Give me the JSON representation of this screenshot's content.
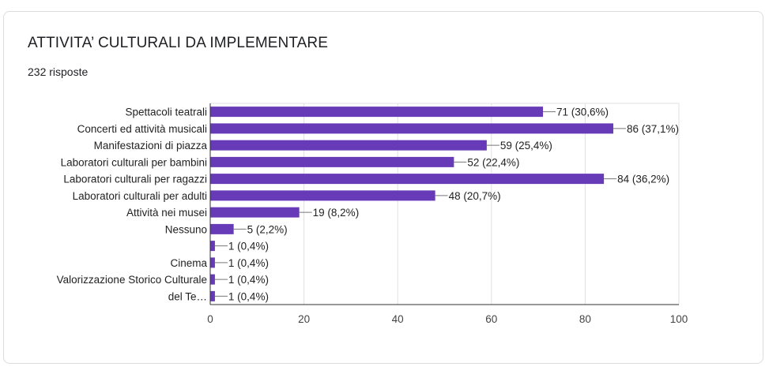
{
  "title": "ATTIVITA’ CULTURALI DA IMPLEMENTARE",
  "subtitle": "232 risposte",
  "chart_data": {
    "type": "bar",
    "orientation": "horizontal",
    "bar_color": "#673ab7",
    "xlim": [
      0,
      100
    ],
    "xticks": [
      0,
      20,
      40,
      60,
      80,
      100
    ],
    "grid": true,
    "bars": [
      {
        "category": [
          "Spettacoli teatrali"
        ],
        "value": 71,
        "label": "71 (30,6%)"
      },
      {
        "category": [
          "Concerti ed attività musicali"
        ],
        "value": 86,
        "label": "86 (37,1%)"
      },
      {
        "category": [
          "Manifestazioni di piazza"
        ],
        "value": 59,
        "label": "59 (25,4%)"
      },
      {
        "category": [
          "Laboratori culturali per bambini"
        ],
        "value": 52,
        "label": "52 (22,4%)"
      },
      {
        "category": [
          "Laboratori culturali per ragazzi"
        ],
        "value": 84,
        "label": "84 (36,2%)"
      },
      {
        "category": [
          "Laboratori culturali per adulti"
        ],
        "value": 48,
        "label": "48 (20,7%)"
      },
      {
        "category": [
          "Attività nei musei"
        ],
        "value": 19,
        "label": "19 (8,2%)"
      },
      {
        "category": [
          "Nessuno"
        ],
        "value": 5,
        "label": "5 (2,2%)"
      },
      {
        "category": [],
        "value": 1,
        "label": "1 (0,4%)"
      },
      {
        "category": [
          "Cinema"
        ],
        "value": 1,
        "label": "1 (0,4%)"
      },
      {
        "category": [
          "Valorizzazione Storico Culturale"
        ],
        "value": 1,
        "label": "1 (0,4%)"
      },
      {
        "category": [
          "del Te…"
        ],
        "value": 1,
        "label": "1 (0,4%)"
      }
    ]
  }
}
